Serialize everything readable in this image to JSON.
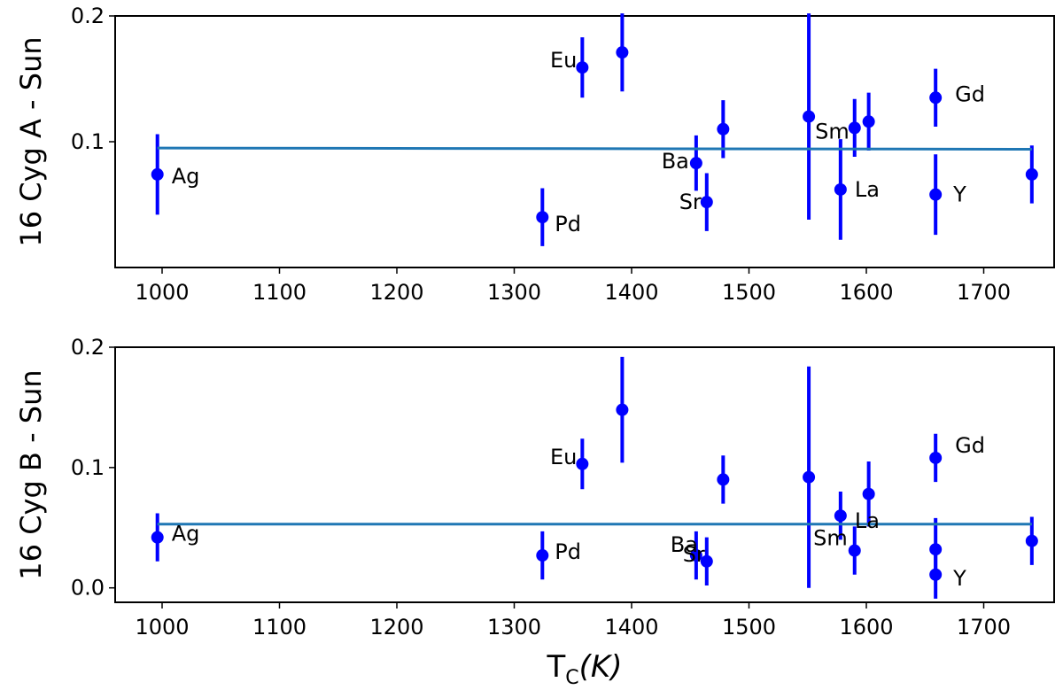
{
  "colors": {
    "points": "#0000ff",
    "fit_line": "#1f77b4",
    "axes": "#000000",
    "background": "#ffffff"
  },
  "xlabel": {
    "main": "T",
    "sub": "C",
    "rest": "(K)"
  },
  "chart_data": [
    {
      "type": "scatter",
      "ylabel": "16 Cyg A - Sun",
      "xlim": [
        960,
        1760
      ],
      "ylim": [
        0.0,
        0.2
      ],
      "xticks": [
        1000,
        1100,
        1200,
        1300,
        1400,
        1500,
        1600,
        1700
      ],
      "yticks": [
        0.1,
        0.2
      ],
      "ytick_labels": [
        "0.1",
        "0.2"
      ],
      "grid": false,
      "fit_line": {
        "x": [
          996,
          1741
        ],
        "y": [
          0.095,
          0.094
        ]
      },
      "points": [
        {
          "x": 996,
          "y": 0.074,
          "err": 0.032,
          "label": "Ag"
        },
        {
          "x": 1324,
          "y": 0.04,
          "err": 0.023,
          "label": "Pd"
        },
        {
          "x": 1358,
          "y": 0.159,
          "err": 0.024,
          "label": "Eu"
        },
        {
          "x": 1392,
          "y": 0.171,
          "err": 0.031,
          "label": ""
        },
        {
          "x": 1455,
          "y": 0.083,
          "err": 0.022,
          "label": "Ba"
        },
        {
          "x": 1464,
          "y": 0.052,
          "err": 0.023,
          "label": "Sr"
        },
        {
          "x": 1478,
          "y": 0.11,
          "err": 0.023,
          "label": ""
        },
        {
          "x": 1551,
          "y": 0.12,
          "err": 0.082,
          "label": ""
        },
        {
          "x": 1578,
          "y": 0.062,
          "err": 0.04,
          "label": "La"
        },
        {
          "x": 1590,
          "y": 0.111,
          "err": 0.023,
          "label": "Sm"
        },
        {
          "x": 1602,
          "y": 0.116,
          "err": 0.023,
          "label": ""
        },
        {
          "x": 1659,
          "y": 0.135,
          "err": 0.023,
          "label": "Gd"
        },
        {
          "x": 1659,
          "y": 0.058,
          "err": 0.032,
          "label": "Y"
        },
        {
          "x": 1741,
          "y": 0.074,
          "err": 0.023,
          "label": ""
        }
      ]
    },
    {
      "type": "scatter",
      "ylabel": "16 Cyg B - Sun",
      "xlim": [
        960,
        1760
      ],
      "ylim": [
        -0.012,
        0.2
      ],
      "xticks": [
        1000,
        1100,
        1200,
        1300,
        1400,
        1500,
        1600,
        1700
      ],
      "yticks": [
        0.0,
        0.1,
        0.2
      ],
      "ytick_labels": [
        "0.0",
        "0.1",
        "0.2"
      ],
      "grid": false,
      "fit_line": {
        "x": [
          996,
          1741
        ],
        "y": [
          0.053,
          0.053
        ]
      },
      "points": [
        {
          "x": 996,
          "y": 0.042,
          "err": 0.02,
          "label": "Ag"
        },
        {
          "x": 1324,
          "y": 0.027,
          "err": 0.02,
          "label": "Pd"
        },
        {
          "x": 1358,
          "y": 0.103,
          "err": 0.021,
          "label": "Eu"
        },
        {
          "x": 1392,
          "y": 0.148,
          "err": 0.044,
          "label": ""
        },
        {
          "x": 1455,
          "y": 0.027,
          "err": 0.02,
          "label": "Ba"
        },
        {
          "x": 1464,
          "y": 0.022,
          "err": 0.02,
          "label": "Sr"
        },
        {
          "x": 1478,
          "y": 0.09,
          "err": 0.02,
          "label": ""
        },
        {
          "x": 1551,
          "y": 0.092,
          "err": 0.092,
          "label": ""
        },
        {
          "x": 1578,
          "y": 0.06,
          "err": 0.02,
          "label": "La"
        },
        {
          "x": 1590,
          "y": 0.031,
          "err": 0.02,
          "label": "Sm"
        },
        {
          "x": 1602,
          "y": 0.078,
          "err": 0.027,
          "label": ""
        },
        {
          "x": 1659,
          "y": 0.108,
          "err": 0.02,
          "label": "Gd"
        },
        {
          "x": 1659,
          "y": 0.032,
          "err": 0.026,
          "label": ""
        },
        {
          "x": 1659,
          "y": 0.011,
          "err": 0.02,
          "label": "Y"
        },
        {
          "x": 1741,
          "y": 0.039,
          "err": 0.02,
          "label": ""
        }
      ]
    }
  ]
}
